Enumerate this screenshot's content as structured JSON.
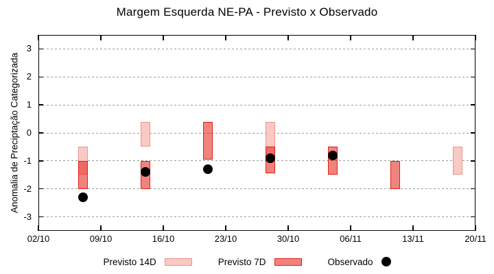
{
  "chart_data": {
    "type": "bar",
    "subtype": "weekly-range-bars-with-observed-scatter",
    "title": "Margem Esquerda NE-PA - Previsto x Observado",
    "xlabel": "",
    "ylabel": "Anomalia de Preciptação Categorizada",
    "ylim": [
      -3.5,
      3.5
    ],
    "yticks": [
      3,
      2,
      1,
      0,
      -1,
      -2,
      -3
    ],
    "x_domain_days": [
      0,
      49
    ],
    "xticks": [
      {
        "day": 0,
        "label": "02/10"
      },
      {
        "day": 7,
        "label": "09/10"
      },
      {
        "day": 14,
        "label": "16/10"
      },
      {
        "day": 21,
        "label": "23/10"
      },
      {
        "day": 28,
        "label": "30/10"
      },
      {
        "day": 35,
        "label": "06/11"
      },
      {
        "day": 42,
        "label": "13/11"
      },
      {
        "day": 49,
        "label": "20/11"
      }
    ],
    "grid": "horizontal-dashed",
    "grid_color": "#999999",
    "axis_color": "#000000",
    "legend_position": "bottom-center",
    "series": [
      {
        "name": "Previsto 14D",
        "slug": "previsto-14d",
        "type": "range-bar",
        "fill": "#f9c9c3",
        "fill_opacity": 1,
        "border": "#f0938a",
        "points": [
          {
            "day": 5,
            "date": "07/10",
            "low": -1.5,
            "high": -0.5
          },
          {
            "day": 12,
            "date": "14/10",
            "low": -0.5,
            "high": 0.4
          },
          {
            "day": 26,
            "date": "28/10",
            "low": -1.0,
            "high": 0.4
          },
          {
            "day": 47,
            "date": "18/11",
            "low": -1.5,
            "high": -0.5
          }
        ]
      },
      {
        "name": "Previsto 7D",
        "slug": "previsto-7d",
        "type": "range-bar",
        "fill": "#e31e14",
        "fill_opacity": 0.55,
        "border": "#e31e14",
        "points": [
          {
            "day": 5,
            "date": "07/10",
            "low": -2.0,
            "high": -1.0
          },
          {
            "day": 12,
            "date": "14/10",
            "low": -2.0,
            "high": -1.0
          },
          {
            "day": 19,
            "date": "21/10",
            "low": -0.95,
            "high": 0.4
          },
          {
            "day": 26,
            "date": "28/10",
            "low": -1.45,
            "high": -0.5
          },
          {
            "day": 33,
            "date": "04/11",
            "low": -1.5,
            "high": -0.5
          },
          {
            "day": 40,
            "date": "11/11",
            "low": -2.0,
            "high": -1.0
          }
        ]
      },
      {
        "name": "Observado",
        "slug": "observado",
        "type": "scatter",
        "color": "#000000",
        "points": [
          {
            "day": 5,
            "date": "07/10",
            "value": -2.3
          },
          {
            "day": 12,
            "date": "14/10",
            "value": -1.4
          },
          {
            "day": 19,
            "date": "21/10",
            "value": -1.3
          },
          {
            "day": 26,
            "date": "28/10",
            "value": -0.9
          },
          {
            "day": 33,
            "date": "04/11",
            "value": -0.8
          }
        ]
      }
    ]
  }
}
